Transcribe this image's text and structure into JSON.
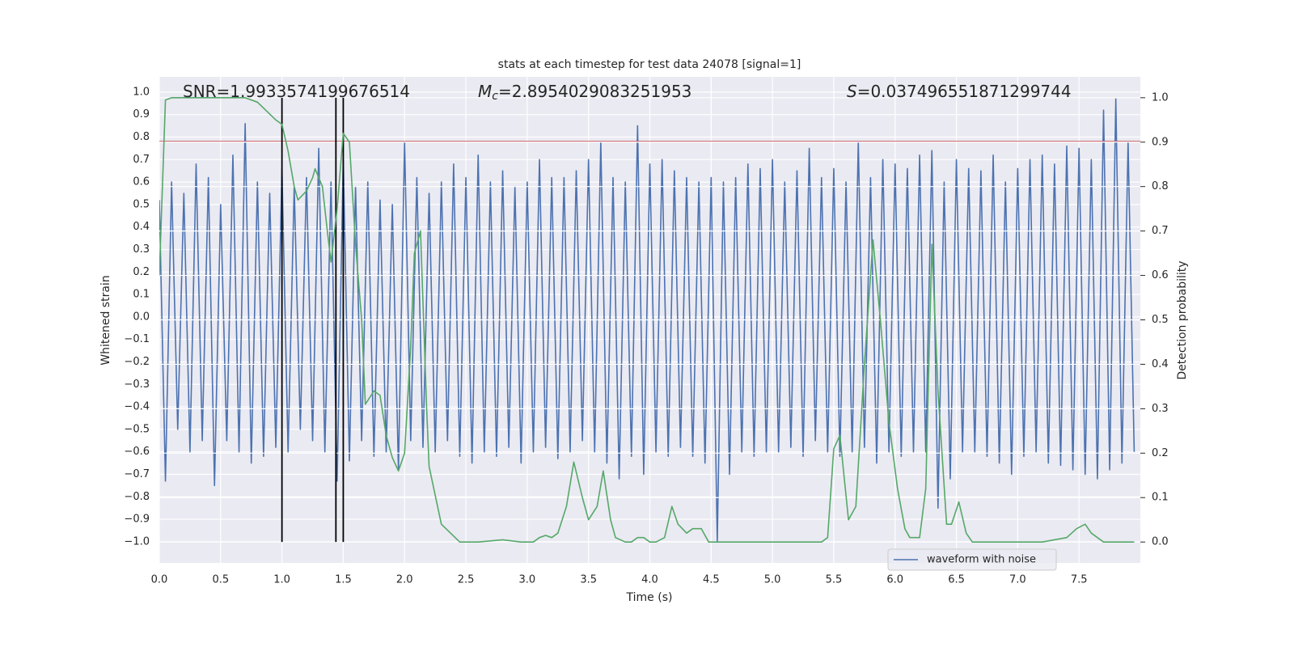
{
  "chart_data": {
    "type": "line",
    "title": "stats at each timestep for test data 24078 [signal=1]",
    "xlabel": "Time (s)",
    "ylabel": "Whitened strain",
    "y2label": "Detection probability",
    "grid": true,
    "legend": "lower right",
    "xlim": [
      0,
      8
    ],
    "ylim": [
      -1.094,
      1.068
    ],
    "y2lim": [
      -0.047,
      1.047
    ],
    "xticks": [
      {
        "value": 0,
        "label": "0.0"
      },
      {
        "value": 0.5,
        "label": "0.5"
      },
      {
        "value": 1,
        "label": "1.0"
      },
      {
        "value": 1.5,
        "label": "1.5"
      },
      {
        "value": 2,
        "label": "2.0"
      },
      {
        "value": 2.5,
        "label": "2.5"
      },
      {
        "value": 3,
        "label": "3.0"
      },
      {
        "value": 3.5,
        "label": "3.5"
      },
      {
        "value": 4,
        "label": "4.0"
      },
      {
        "value": 4.5,
        "label": "4.5"
      },
      {
        "value": 5,
        "label": "5.0"
      },
      {
        "value": 5.5,
        "label": "5.5"
      },
      {
        "value": 6,
        "label": "6.0"
      },
      {
        "value": 6.5,
        "label": "6.5"
      },
      {
        "value": 7,
        "label": "7.0"
      },
      {
        "value": 7.5,
        "label": "7.5"
      }
    ],
    "yticks": [
      {
        "value": -1,
        "label": "−1.0"
      },
      {
        "value": -0.9,
        "label": "−0.9"
      },
      {
        "value": -0.8,
        "label": "−0.8"
      },
      {
        "value": -0.7,
        "label": "−0.7"
      },
      {
        "value": -0.6,
        "label": "−0.6"
      },
      {
        "value": -0.5,
        "label": "−0.5"
      },
      {
        "value": -0.4,
        "label": "−0.4"
      },
      {
        "value": -0.3,
        "label": "−0.3"
      },
      {
        "value": -0.2,
        "label": "−0.2"
      },
      {
        "value": -0.1,
        "label": "−0.1"
      },
      {
        "value": 0,
        "label": "0.0"
      },
      {
        "value": 0.1,
        "label": "0.1"
      },
      {
        "value": 0.2,
        "label": "0.2"
      },
      {
        "value": 0.3,
        "label": "0.3"
      },
      {
        "value": 0.4,
        "label": "0.4"
      },
      {
        "value": 0.5,
        "label": "0.5"
      },
      {
        "value": 0.6,
        "label": "0.6"
      },
      {
        "value": 0.7,
        "label": "0.7"
      },
      {
        "value": 0.8,
        "label": "0.8"
      },
      {
        "value": 0.9,
        "label": "0.9"
      },
      {
        "value": 1,
        "label": "1.0"
      }
    ],
    "y2ticks": [
      {
        "value": 0,
        "label": "0.0"
      },
      {
        "value": 0.1,
        "label": "0.1"
      },
      {
        "value": 0.2,
        "label": "0.2"
      },
      {
        "value": 0.3,
        "label": "0.3"
      },
      {
        "value": 0.4,
        "label": "0.4"
      },
      {
        "value": 0.5,
        "label": "0.5"
      },
      {
        "value": 0.6,
        "label": "0.6"
      },
      {
        "value": 0.7,
        "label": "0.7"
      },
      {
        "value": 0.8,
        "label": "0.8"
      },
      {
        "value": 0.9,
        "label": "0.9"
      },
      {
        "value": 1,
        "label": "1.0"
      }
    ],
    "annotations": [
      {
        "text": "SNR=1.9933574199676514"
      },
      {
        "symbol": "M",
        "subscript": "c",
        "text": "=2.8954029083251953"
      },
      {
        "symbol": "S",
        "text": "=0.037496551871299744"
      }
    ],
    "hlines": [
      {
        "value": 0.78,
        "color": "#c44e52"
      }
    ],
    "vlines": {
      "axis": "y2",
      "values": [
        1.0,
        1.44,
        1.5
      ],
      "ymin": 0,
      "ymax": 1,
      "color": "#000000"
    },
    "series": [
      {
        "name": "waveform with noise",
        "color": "#4c72b0",
        "x": [
          0,
          0.05,
          0.1,
          0.15,
          0.2,
          0.25,
          0.3,
          0.35,
          0.4,
          0.45,
          0.5,
          0.55,
          0.6,
          0.65,
          0.7,
          0.75,
          0.8,
          0.85,
          0.9,
          0.95,
          1,
          1.05,
          1.1,
          1.15,
          1.2,
          1.25,
          1.3,
          1.35,
          1.4,
          1.45,
          1.5,
          1.55,
          1.6,
          1.65,
          1.7,
          1.75,
          1.8,
          1.85,
          1.9,
          1.95,
          2,
          2.05,
          2.1,
          2.15,
          2.2,
          2.25,
          2.3,
          2.35,
          2.4,
          2.45,
          2.5,
          2.55,
          2.6,
          2.65,
          2.7,
          2.75,
          2.8,
          2.85,
          2.9,
          2.95,
          3,
          3.05,
          3.1,
          3.15,
          3.2,
          3.25,
          3.3,
          3.35,
          3.4,
          3.45,
          3.5,
          3.55,
          3.6,
          3.65,
          3.7,
          3.75,
          3.8,
          3.85,
          3.9,
          3.95,
          4,
          4.05,
          4.1,
          4.15,
          4.2,
          4.25,
          4.3,
          4.35,
          4.4,
          4.45,
          4.5,
          4.55,
          4.6,
          4.65,
          4.7,
          4.75,
          4.8,
          4.85,
          4.9,
          4.95,
          5,
          5.05,
          5.1,
          5.15,
          5.2,
          5.25,
          5.3,
          5.35,
          5.4,
          5.45,
          5.5,
          5.55,
          5.6,
          5.65,
          5.7,
          5.75,
          5.8,
          5.85,
          5.9,
          5.95,
          6,
          6.05,
          6.1,
          6.15,
          6.2,
          6.25,
          6.3,
          6.35,
          6.4,
          6.45,
          6.5,
          6.55,
          6.6,
          6.65,
          6.7,
          6.75,
          6.8,
          6.85,
          6.9,
          6.95,
          7,
          7.05,
          7.1,
          7.15,
          7.2,
          7.25,
          7.3,
          7.35,
          7.4,
          7.45,
          7.5,
          7.55,
          7.6,
          7.65,
          7.7,
          7.75,
          7.8,
          7.85,
          7.9,
          7.95
        ],
        "values": [
          0.52,
          -0.73,
          0.6,
          -0.5,
          0.55,
          -0.6,
          0.68,
          -0.55,
          0.62,
          -0.75,
          0.5,
          -0.55,
          0.72,
          -0.6,
          0.86,
          -0.65,
          0.6,
          -0.62,
          0.55,
          -0.58,
          0.66,
          -0.6,
          0.58,
          -0.5,
          0.62,
          -0.55,
          0.75,
          -0.6,
          0.6,
          -0.73,
          0.7,
          -0.64,
          0.58,
          -0.55,
          0.6,
          -0.62,
          0.52,
          -0.6,
          0.5,
          -0.68,
          0.78,
          -0.55,
          0.62,
          -0.58,
          0.55,
          -0.6,
          0.6,
          -0.55,
          0.68,
          -0.62,
          0.62,
          -0.65,
          0.72,
          -0.6,
          0.6,
          -0.62,
          0.65,
          -0.58,
          0.58,
          -0.65,
          0.6,
          -0.6,
          0.7,
          -0.58,
          0.62,
          -0.63,
          0.62,
          -0.6,
          0.65,
          -0.55,
          0.7,
          -0.6,
          0.78,
          -0.65,
          0.62,
          -0.72,
          0.6,
          -0.62,
          0.85,
          -0.7,
          0.68,
          -0.6,
          0.7,
          -0.62,
          0.65,
          -0.58,
          0.62,
          -0.62,
          0.6,
          -0.65,
          0.62,
          -1.0,
          0.6,
          -0.7,
          0.62,
          -0.6,
          0.68,
          -0.62,
          0.66,
          -0.6,
          0.7,
          -0.6,
          0.6,
          -0.58,
          0.65,
          -0.62,
          0.75,
          -0.55,
          0.62,
          -0.6,
          0.66,
          -0.62,
          0.6,
          -0.6,
          0.78,
          -0.58,
          0.62,
          -0.65,
          0.7,
          -0.6,
          0.68,
          -0.62,
          0.66,
          -0.6,
          0.72,
          -0.6,
          0.74,
          -0.85,
          0.6,
          -0.72,
          0.7,
          -0.6,
          0.66,
          -0.6,
          0.65,
          -0.62,
          0.72,
          -0.65,
          0.6,
          -0.7,
          0.66,
          -0.62,
          0.7,
          -0.6,
          0.72,
          -0.65,
          0.68,
          -0.66,
          0.76,
          -0.68,
          0.75,
          -0.7,
          0.7,
          -0.72,
          0.92,
          -0.68,
          0.97,
          -0.65,
          0.78,
          -0.6
        ]
      },
      {
        "color": "#55a868",
        "axis": "y2",
        "x": [
          0,
          0.05,
          0.1,
          0.2,
          0.4,
          0.6,
          0.7,
          0.8,
          0.95,
          1,
          1.05,
          1.1,
          1.13,
          1.2,
          1.25,
          1.27,
          1.33,
          1.37,
          1.4,
          1.45,
          1.5,
          1.55,
          1.6,
          1.65,
          1.68,
          1.75,
          1.8,
          1.85,
          1.9,
          1.95,
          2,
          2.05,
          2.08,
          2.13,
          2.18,
          2.2,
          2.3,
          2.45,
          2.6,
          2.8,
          2.95,
          3.05,
          3.1,
          3.15,
          3.2,
          3.25,
          3.32,
          3.38,
          3.45,
          3.5,
          3.57,
          3.62,
          3.68,
          3.72,
          3.8,
          3.85,
          3.9,
          3.95,
          4,
          4.05,
          4.12,
          4.18,
          4.23,
          4.3,
          4.35,
          4.42,
          4.48,
          4.55,
          4.7,
          4.9,
          5.2,
          5.4,
          5.45,
          5.5,
          5.55,
          5.62,
          5.68,
          5.75,
          5.82,
          5.88,
          5.95,
          6.02,
          6.08,
          6.12,
          6.2,
          6.25,
          6.3,
          6.35,
          6.42,
          6.46,
          6.52,
          6.58,
          6.63,
          6.8,
          7,
          7.2,
          7.4,
          7.48,
          7.55,
          7.6,
          7.65,
          7.7,
          7.8,
          7.95
        ],
        "values": [
          0.6,
          0.995,
          1.0,
          1.0,
          1.0,
          1.0,
          1.0,
          0.99,
          0.95,
          0.94,
          0.88,
          0.8,
          0.77,
          0.79,
          0.82,
          0.84,
          0.8,
          0.7,
          0.63,
          0.75,
          0.92,
          0.9,
          0.67,
          0.5,
          0.31,
          0.34,
          0.33,
          0.24,
          0.19,
          0.16,
          0.2,
          0.44,
          0.65,
          0.7,
          0.3,
          0.17,
          0.04,
          0.0,
          0.0,
          0.005,
          0.0,
          0.0,
          0.01,
          0.015,
          0.01,
          0.02,
          0.08,
          0.18,
          0.1,
          0.05,
          0.08,
          0.16,
          0.05,
          0.01,
          0.0,
          0.0,
          0.01,
          0.01,
          0.0,
          0.0,
          0.01,
          0.08,
          0.04,
          0.02,
          0.03,
          0.03,
          0.0,
          0.0,
          0.0,
          0.0,
          0.0,
          0.0,
          0.01,
          0.21,
          0.24,
          0.05,
          0.08,
          0.4,
          0.68,
          0.5,
          0.27,
          0.12,
          0.03,
          0.01,
          0.01,
          0.12,
          0.67,
          0.34,
          0.04,
          0.04,
          0.09,
          0.02,
          0.0,
          0.0,
          0.0,
          0.0,
          0.01,
          0.03,
          0.04,
          0.02,
          0.01,
          0.0,
          0.0,
          0.0
        ]
      }
    ]
  }
}
